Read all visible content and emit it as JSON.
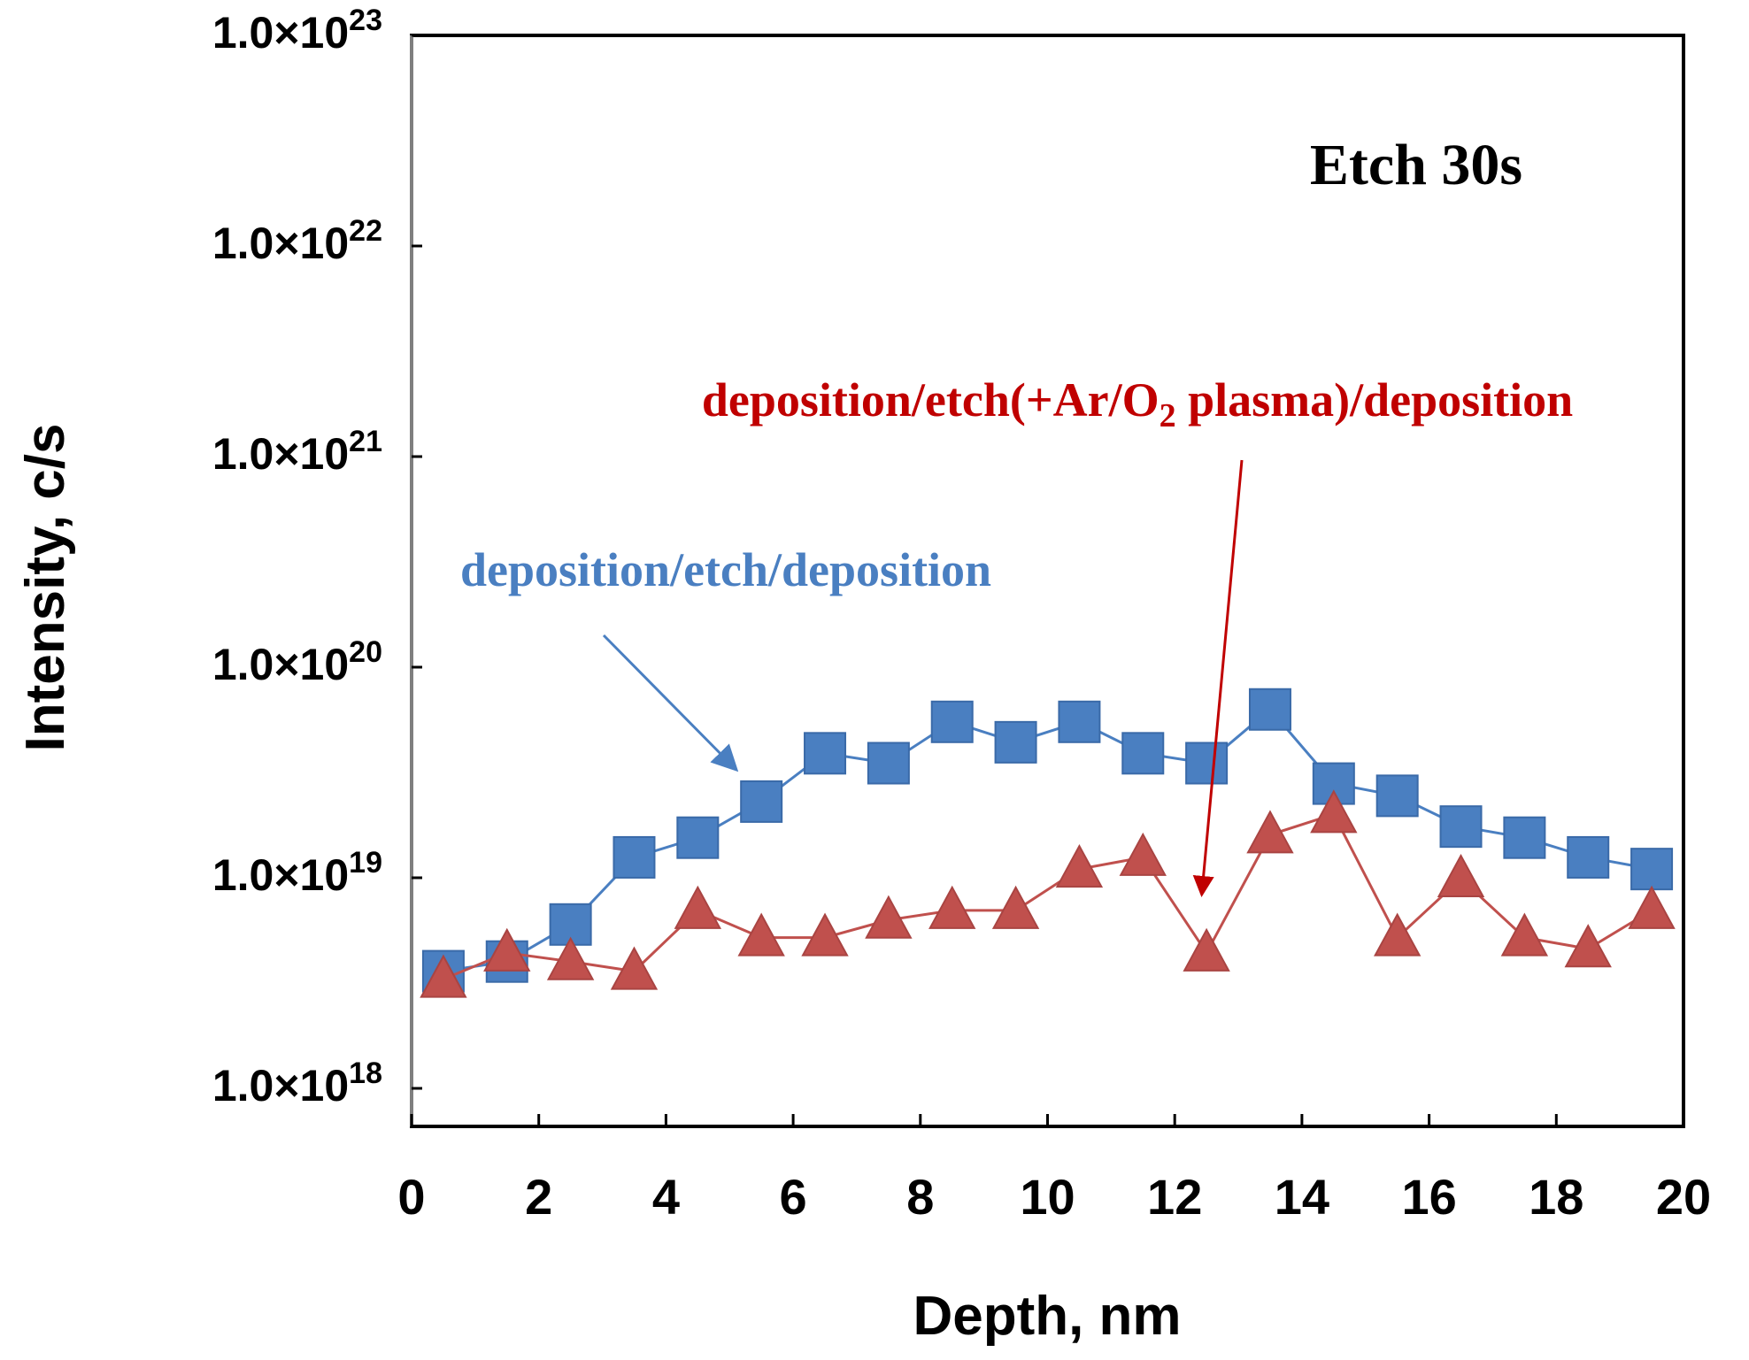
{
  "chart_data": {
    "type": "line",
    "title": "Etch 30s",
    "xlabel": "Depth, nm",
    "ylabel": "Intensity, c/s",
    "xlim": [
      0,
      20
    ],
    "ylim": [
      1e+18,
      1e+23
    ],
    "yscale": "log",
    "grid": false,
    "x_ticks": [
      "0",
      "2",
      "4",
      "6",
      "8",
      "10",
      "12",
      "14",
      "16",
      "18",
      "20"
    ],
    "y_ticks": [
      {
        "mantissa": "1.0×10",
        "exp": "18",
        "value": 1e+18
      },
      {
        "mantissa": "1.0×10",
        "exp": "19",
        "value": 1e+19
      },
      {
        "mantissa": "1.0×10",
        "exp": "20",
        "value": 1e+20
      },
      {
        "mantissa": "1.0×10",
        "exp": "21",
        "value": 1e+21
      },
      {
        "mantissa": "1.0×10",
        "exp": "22",
        "value": 1e+22
      },
      {
        "mantissa": "1.0×10",
        "exp": "23",
        "value": 1e+23
      }
    ],
    "series": [
      {
        "name": "deposition/etch/deposition",
        "color": "#4a7fc1",
        "marker": "square",
        "x": [
          0.5,
          1.5,
          2.5,
          3.5,
          4.5,
          5.5,
          6.5,
          7.5,
          8.5,
          9.5,
          10.5,
          11.5,
          12.5,
          13.5,
          14.5,
          15.5,
          16.5,
          17.5,
          18.5,
          19.5
        ],
        "values": [
          3.6e+18,
          4e+18,
          6e+18,
          1.25e+19,
          1.55e+19,
          2.3e+19,
          3.9e+19,
          3.5e+19,
          5.5e+19,
          4.4e+19,
          5.5e+19,
          3.9e+19,
          3.5e+19,
          6.3e+19,
          2.8e+19,
          2.45e+19,
          1.75e+19,
          1.55e+19,
          1.25e+19,
          1.1e+19
        ]
      },
      {
        "name": "deposition/etch(+Ar/O2 plasma)/deposition",
        "color": "#c0504d",
        "marker": "triangle",
        "x": [
          0.5,
          1.5,
          2.5,
          3.5,
          4.5,
          5.5,
          6.5,
          7.5,
          8.5,
          9.5,
          10.5,
          11.5,
          12.5,
          13.5,
          14.5,
          15.5,
          16.5,
          17.5,
          18.5,
          19.5
        ],
        "values": [
          3.3e+18,
          4.4e+18,
          4e+18,
          3.6e+18,
          7e+18,
          5.2e+18,
          5.2e+18,
          6.3e+18,
          7e+18,
          7e+18,
          1.1e+19,
          1.25e+19,
          4.4e+18,
          1.6e+19,
          2e+19,
          5.2e+18,
          9.9e+18,
          5.2e+18,
          4.6e+18,
          7e+18
        ]
      }
    ],
    "annotations": {
      "blue_label": "deposition/etch/deposition",
      "red_label_pre": "deposition/etch(+Ar/O",
      "red_label_sub": "2",
      "red_label_post": " plasma)/deposition"
    }
  }
}
